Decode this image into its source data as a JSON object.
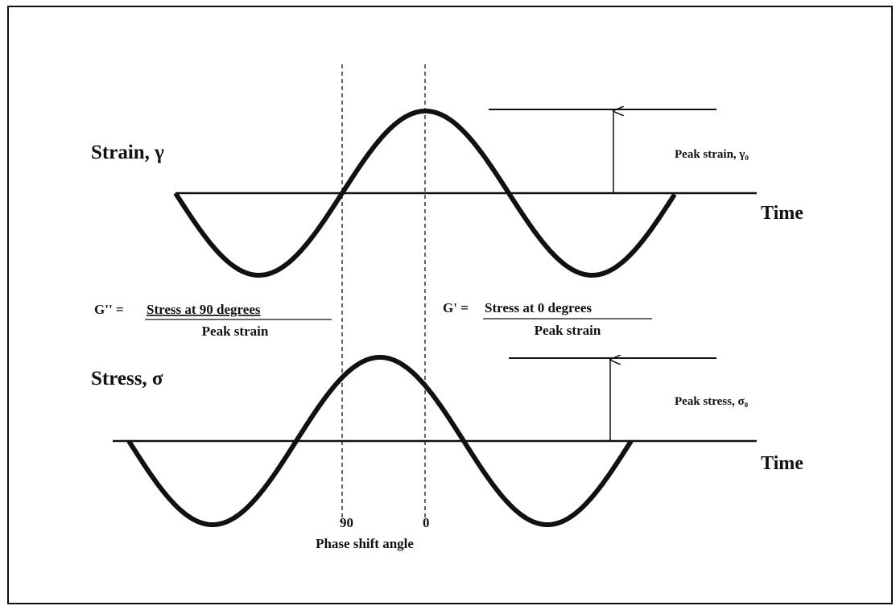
{
  "strain": {
    "label": "Strain, γ",
    "peak_label": "Peak strain, γ₀",
    "axis_label": "Time"
  },
  "stress": {
    "label": "Stress, σ",
    "peak_label": "Peak stress, σ₀",
    "axis_label": "Time"
  },
  "loss_modulus": {
    "lhs": "G'' =",
    "numerator": "Stress at 90 degrees",
    "denominator": "Peak strain"
  },
  "storage_modulus": {
    "lhs": "G' =",
    "numerator": "Stress at 0 degrees",
    "denominator": "Peak strain"
  },
  "phase": {
    "marker_90": "90",
    "marker_0": "0",
    "label": "Phase shift angle"
  }
}
